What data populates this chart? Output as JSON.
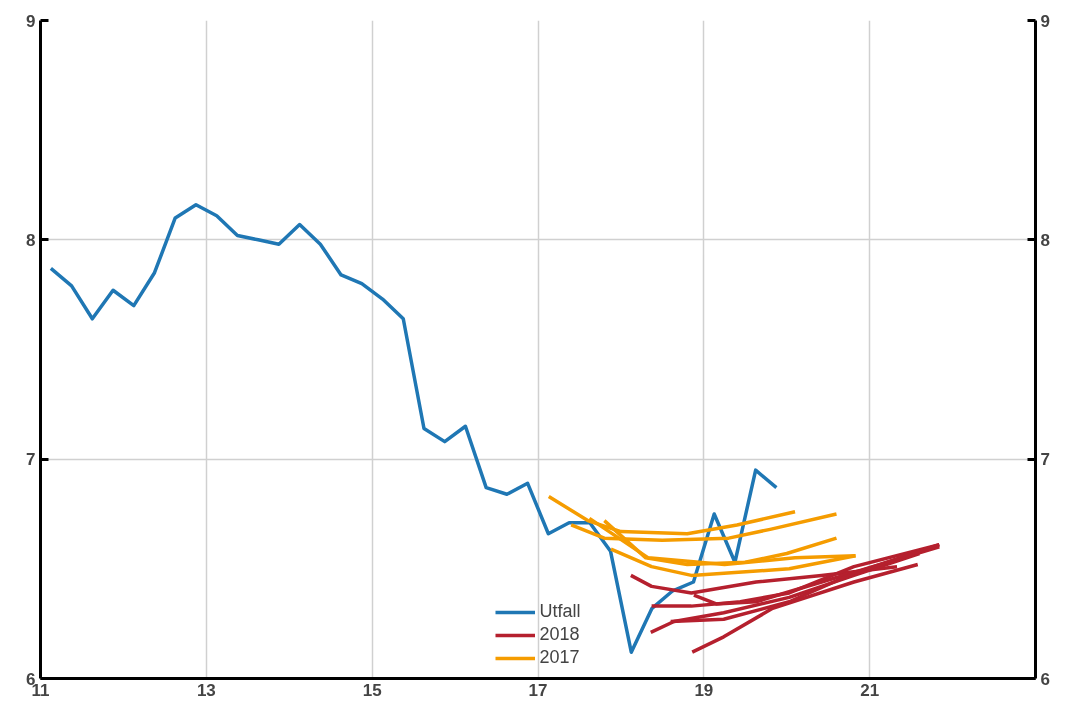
{
  "chart_data": {
    "type": "line",
    "xlim": [
      11,
      23
    ],
    "xticks": [
      11,
      13,
      15,
      17,
      19,
      21
    ],
    "ylim": [
      6,
      9
    ],
    "yticks": [
      6,
      7,
      8,
      9
    ],
    "y2lim": [
      6,
      9
    ],
    "y2ticks": [
      6,
      7,
      8,
      9
    ],
    "grid": true,
    "legend": "bottom",
    "line_style": "solid",
    "marker": "none",
    "series": [
      {
        "name": "Utfall",
        "color": "#1f77b4",
        "x": [
          11.125,
          11.375,
          11.625,
          11.875,
          12.125,
          12.375,
          12.625,
          12.875,
          13.125,
          13.375,
          13.625,
          13.875,
          14.125,
          14.375,
          14.625,
          14.875,
          15.125,
          15.375,
          15.625,
          15.875,
          16.125,
          16.375,
          16.625,
          16.875,
          17.125,
          17.375,
          17.625,
          17.875,
          18.125,
          18.375,
          18.625,
          18.875,
          19.125,
          19.375,
          19.625,
          19.875
        ],
        "values": [
          7.87,
          7.79,
          7.64,
          7.77,
          7.7,
          7.85,
          8.1,
          8.16,
          8.11,
          8.02,
          8.0,
          7.98,
          8.07,
          7.98,
          7.84,
          7.8,
          7.73,
          7.64,
          7.14,
          7.08,
          7.15,
          6.87,
          6.84,
          6.89,
          6.66,
          6.71,
          6.71,
          6.58,
          6.12,
          6.32,
          6.4,
          6.44,
          6.75,
          6.53,
          6.95,
          6.87
        ]
      },
      {
        "name": "2018",
        "color": "#b5202e",
        "x": [
          18.12,
          18.37,
          18.85,
          19.63,
          20.42,
          21.33
        ],
        "values": [
          6.47,
          6.42,
          6.39,
          6.44,
          6.47,
          6.51
        ]
      },
      {
        "color": "#b5202e",
        "x": [
          18.37,
          18.85,
          19.44,
          20.03,
          20.81,
          21.84
        ],
        "values": [
          6.33,
          6.33,
          6.35,
          6.39,
          6.51,
          6.61
        ]
      },
      {
        "color": "#b5202e",
        "x": [
          18.36,
          18.64,
          19.24,
          20.03,
          20.81,
          21.6
        ],
        "values": [
          6.21,
          6.26,
          6.3,
          6.37,
          6.47,
          6.57
        ]
      },
      {
        "color": "#b5202e",
        "x": [
          18.86,
          19.24,
          19.83,
          20.81,
          21.58
        ],
        "values": [
          6.12,
          6.19,
          6.32,
          6.44,
          6.52
        ]
      },
      {
        "color": "#b5202e",
        "x": [
          18.88,
          19.15,
          19.63,
          20.42,
          21.84
        ],
        "values": [
          6.38,
          6.34,
          6.35,
          6.44,
          6.6
        ]
      },
      {
        "color": "#b5202e",
        "x": [
          18.6,
          19.24,
          20.03,
          20.81,
          21.84
        ],
        "values": [
          6.26,
          6.27,
          6.35,
          6.48,
          6.61
        ]
      },
      {
        "name": "2017",
        "color": "#f59c00",
        "x": [
          17.13,
          17.6,
          18.0,
          18.8,
          19.4,
          20.1
        ],
        "values": [
          6.83,
          6.72,
          6.67,
          6.66,
          6.7,
          6.76
        ]
      },
      {
        "color": "#f59c00",
        "x": [
          17.4,
          17.8,
          18.5,
          19.3,
          19.8,
          20.6
        ],
        "values": [
          6.7,
          6.64,
          6.63,
          6.64,
          6.68,
          6.75
        ]
      },
      {
        "color": "#f59c00",
        "x": [
          17.8,
          18.3,
          18.8,
          19.5,
          20.0,
          20.6
        ],
        "values": [
          6.72,
          6.55,
          6.52,
          6.53,
          6.57,
          6.64
        ]
      },
      {
        "color": "#f59c00",
        "x": [
          17.88,
          18.37,
          18.85,
          20.03,
          20.83
        ],
        "values": [
          6.59,
          6.51,
          6.47,
          6.5,
          6.56
        ]
      },
      {
        "color": "#f59c00",
        "x": [
          17.62,
          18.33,
          19.25,
          20.1,
          20.83
        ],
        "values": [
          6.73,
          6.55,
          6.52,
          6.55,
          6.56
        ]
      }
    ]
  }
}
